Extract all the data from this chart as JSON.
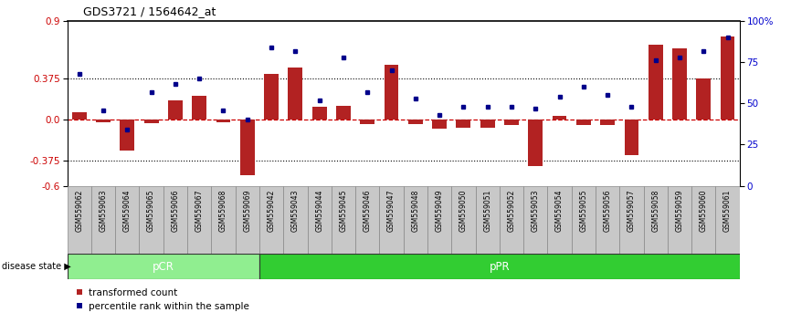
{
  "title": "GDS3721 / 1564642_at",
  "samples": [
    "GSM559062",
    "GSM559063",
    "GSM559064",
    "GSM559065",
    "GSM559066",
    "GSM559067",
    "GSM559068",
    "GSM559069",
    "GSM559042",
    "GSM559043",
    "GSM559044",
    "GSM559045",
    "GSM559046",
    "GSM559047",
    "GSM559048",
    "GSM559049",
    "GSM559050",
    "GSM559051",
    "GSM559052",
    "GSM559053",
    "GSM559054",
    "GSM559055",
    "GSM559056",
    "GSM559057",
    "GSM559058",
    "GSM559059",
    "GSM559060",
    "GSM559061"
  ],
  "bar_values": [
    0.07,
    -0.02,
    -0.28,
    -0.03,
    0.18,
    0.22,
    -0.02,
    -0.5,
    0.42,
    0.48,
    0.12,
    0.13,
    -0.04,
    0.5,
    -0.04,
    -0.08,
    -0.07,
    -0.07,
    -0.05,
    -0.42,
    0.04,
    -0.05,
    -0.05,
    -0.32,
    0.68,
    0.65,
    0.38,
    0.76
  ],
  "dot_percentiles": [
    68,
    46,
    34,
    57,
    62,
    65,
    46,
    40,
    84,
    82,
    52,
    78,
    57,
    70,
    53,
    43,
    48,
    48,
    48,
    47,
    54,
    60,
    55,
    48,
    76,
    78,
    82,
    90
  ],
  "pcr_count": 8,
  "ppr_count": 20,
  "y_min": -0.6,
  "y_max": 0.9,
  "yticks_left": [
    -0.6,
    -0.375,
    0.0,
    0.375,
    0.9
  ],
  "yticks_right": [
    0,
    25,
    50,
    75,
    100
  ],
  "bar_color": "#b22222",
  "dot_color": "#00008b",
  "zero_line_color": "#cc0000",
  "hline_color": "#000000",
  "pcr_color": "#90ee90",
  "ppr_color": "#32cd32",
  "left_tick_color": "#cc0000",
  "right_tick_color": "#0000cc",
  "label_bg_color": "#c8c8c8",
  "legend_red_label": "transformed count",
  "legend_blue_label": "percentile rank within the sample",
  "disease_state_text": "disease state ▶",
  "pcr_label": "pCR",
  "ppr_label": "pPR"
}
